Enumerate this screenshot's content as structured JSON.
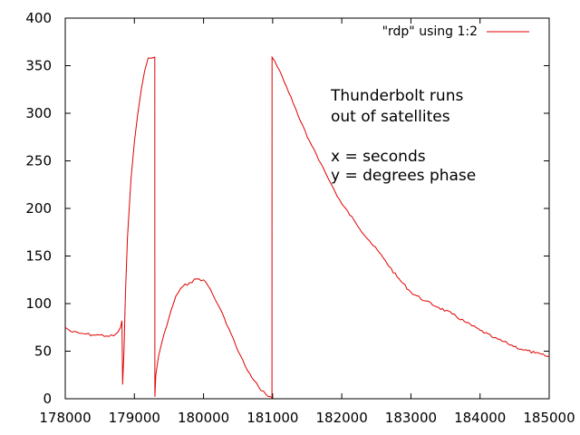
{
  "chart_data": {
    "type": "line",
    "title": "",
    "xlabel": "",
    "ylabel": "",
    "xlim": [
      178000,
      185000
    ],
    "ylim": [
      0,
      400
    ],
    "x_ticks": [
      178000,
      179000,
      180000,
      181000,
      182000,
      183000,
      184000,
      185000
    ],
    "y_ticks": [
      0,
      50,
      100,
      150,
      200,
      250,
      300,
      350,
      400
    ],
    "grid": false,
    "legend_position": "top-right",
    "annotations": [
      "Thunderbolt runs",
      "out of satellites",
      "x = seconds",
      "y = degrees phase"
    ],
    "series": [
      {
        "name": "\"rdp\" using 1:2",
        "color": "#e00000",
        "x": [
          178000,
          178100,
          178200,
          178300,
          178400,
          178500,
          178600,
          178700,
          178760,
          178800,
          178820,
          178830,
          178850,
          178870,
          178900,
          178950,
          179000,
          179050,
          179100,
          179150,
          179200,
          179250,
          179295,
          179296,
          179310,
          179350,
          179400,
          179500,
          179600,
          179700,
          179800,
          179900,
          180000,
          180100,
          180200,
          180300,
          180400,
          180500,
          180600,
          180700,
          180800,
          180900,
          180990,
          180991,
          181000,
          181100,
          181200,
          181300,
          181400,
          181500,
          181600,
          181700,
          181800,
          181900,
          182000,
          182200,
          182400,
          182600,
          182800,
          183000,
          183200,
          183400,
          183600,
          183800,
          184000,
          184200,
          184400,
          184600,
          184800,
          185000
        ],
        "y": [
          75,
          70,
          69,
          68,
          67,
          67,
          66,
          66,
          70,
          75,
          82,
          15,
          50,
          110,
          170,
          230,
          270,
          300,
          325,
          345,
          358,
          358,
          359,
          2,
          25,
          45,
          60,
          85,
          108,
          118,
          122,
          126,
          125,
          115,
          100,
          85,
          68,
          50,
          35,
          22,
          12,
          5,
          1,
          359,
          358,
          345,
          328,
          310,
          292,
          275,
          262,
          247,
          232,
          218,
          205,
          185,
          166,
          148,
          128,
          112,
          103,
          96,
          89,
          80,
          72,
          64,
          58,
          52,
          48,
          44
        ]
      }
    ]
  }
}
